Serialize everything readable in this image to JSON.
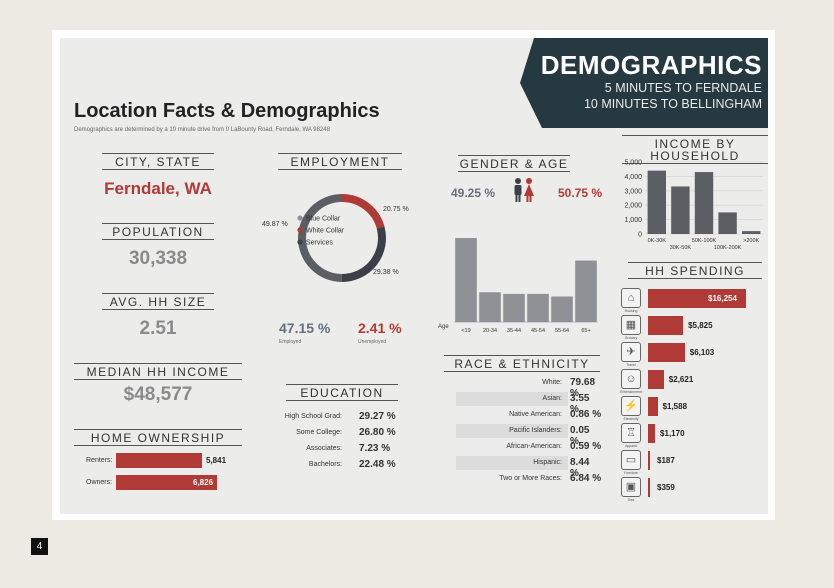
{
  "banner": {
    "title": "DEMOGRAPHICS",
    "line1": "5 MINUTES TO FERNDALE",
    "line2": "10 MINUTES TO BELLINGHAM"
  },
  "title": "Location Facts & Demographics",
  "subtitle": "Demographics are determined by a 10 minute drive from 0 LaBounty Road, Ferndale, WA 98248",
  "city_state": {
    "heading": "CITY, STATE",
    "value": "Ferndale, WA"
  },
  "population": {
    "heading": "POPULATION",
    "value": "30,338"
  },
  "avg_hh_size": {
    "heading": "AVG. HH SIZE",
    "value": "2.51"
  },
  "median_income": {
    "heading": "MEDIAN HH INCOME",
    "value": "$48,577"
  },
  "home_ownership": {
    "heading": "HOME OWNERSHIP",
    "rows": [
      {
        "label": "Renters:",
        "value": "5,841",
        "number": 5841
      },
      {
        "label": "Owners:",
        "value": "6,826",
        "number": 6826
      }
    ]
  },
  "employment": {
    "heading": "EMPLOYMENT",
    "legend": [
      "Blue Collar",
      "White Collar",
      "Services"
    ],
    "slices": [
      {
        "name": "Blue Collar",
        "label": "49.87 %",
        "value": 49.87,
        "color": "#5b5f64"
      },
      {
        "name": "White Collar",
        "label": "20.75 %",
        "value": 20.75,
        "color": "#b03a35"
      },
      {
        "name": "Services",
        "label": "29.38 %",
        "value": 29.38,
        "color": "#3c4046"
      }
    ],
    "employed": {
      "value": "47.15 %",
      "label": "Employed"
    },
    "unemployed": {
      "value": "2.41 %",
      "label": "Unemployed"
    }
  },
  "education": {
    "heading": "EDUCATION",
    "rows": [
      {
        "label": "High School Grad:",
        "value": "29.27 %"
      },
      {
        "label": "Some College:",
        "value": "26.80 %"
      },
      {
        "label": "Associates:",
        "value": "7.23 %"
      },
      {
        "label": "Bachelors:",
        "value": "22.48 %"
      }
    ]
  },
  "gender_age": {
    "heading": "GENDER & AGE",
    "male": "49.25 %",
    "female": "50.75 %",
    "age_axis_label": "Age"
  },
  "race": {
    "heading": "RACE & ETHNICITY",
    "rows": [
      {
        "label": "White:",
        "value": "79.68 %"
      },
      {
        "label": "Asian:",
        "value": "3.55 %"
      },
      {
        "label": "Native American:",
        "value": "0.86 %"
      },
      {
        "label": "Pacific Islanders:",
        "value": "0.05 %"
      },
      {
        "label": "African-American:",
        "value": "0.59 %"
      },
      {
        "label": "Hispanic:",
        "value": "8.44 %"
      },
      {
        "label": "Two or More Races:",
        "value": "6.84 %"
      }
    ]
  },
  "income_household": {
    "heading": "INCOME BY HOUSEHOLD"
  },
  "hh_spending": {
    "heading": "HH SPENDING",
    "rows": [
      {
        "label": "$16,254",
        "value": 16254,
        "icon": "house-icon",
        "glyph": "⌂",
        "caption": "Housing"
      },
      {
        "label": "$5,825",
        "value": 5825,
        "icon": "basket-icon",
        "glyph": "▦",
        "caption": "Grocery"
      },
      {
        "label": "$6,103",
        "value": 6103,
        "icon": "plane-icon",
        "glyph": "✈",
        "caption": "Travel"
      },
      {
        "label": "$2,621",
        "value": 2621,
        "icon": "theater-icon",
        "glyph": "☺",
        "caption": "Entertainment"
      },
      {
        "label": "$1,588",
        "value": 1588,
        "icon": "electric-icon",
        "glyph": "⚡",
        "caption": "Electricity"
      },
      {
        "label": "$1,170",
        "value": 1170,
        "icon": "apparel-icon",
        "glyph": "♖",
        "caption": "Apparel"
      },
      {
        "label": "$187",
        "value": 187,
        "icon": "furniture-icon",
        "glyph": "▭",
        "caption": "Furniture"
      },
      {
        "label": "$359",
        "value": 359,
        "icon": "gas-icon",
        "glyph": "▣",
        "caption": "Gas"
      }
    ]
  },
  "chart_data": [
    {
      "type": "bar",
      "categories": [
        "0K-30K",
        "30K-50K",
        "50K-100K",
        "100K-200K",
        ">200K"
      ],
      "values": [
        4400,
        3300,
        4300,
        1500,
        200
      ],
      "ylim": [
        0,
        5000
      ],
      "yticks": [
        "5,000",
        "4,000",
        "3,000",
        "2,000",
        "1,000",
        "0"
      ],
      "color": "#5b5f64"
    },
    {
      "type": "bar",
      "categories": [
        "<19",
        "20-34",
        "35-44",
        "45-54",
        "55-64",
        "65+"
      ],
      "values": [
        25.7,
        9.1,
        8.6,
        8.6,
        7.8,
        18.8
      ],
      "xlabel": "Age",
      "color": "#8e9196"
    }
  ],
  "page_number": "4"
}
